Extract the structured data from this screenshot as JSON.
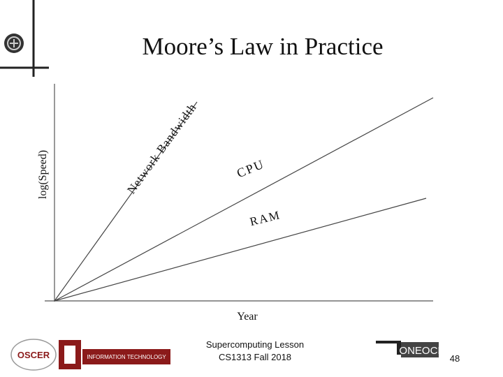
{
  "header": {
    "title": "Moore’s Law in Practice"
  },
  "diagram": {
    "y_axis_label": "log(Speed)",
    "x_axis_label": "Year",
    "lines": [
      {
        "label": "Network Bandwidth"
      },
      {
        "label": "CPU"
      },
      {
        "label": "RAM"
      }
    ]
  },
  "footer": {
    "lines": [
      "Supercomputing Lesson",
      "CS1313 Fall 2018"
    ],
    "page": "48",
    "logos": [
      "OSCER",
      "INFORMATION TECHNOLOGY",
      "ONEOCI"
    ]
  }
}
